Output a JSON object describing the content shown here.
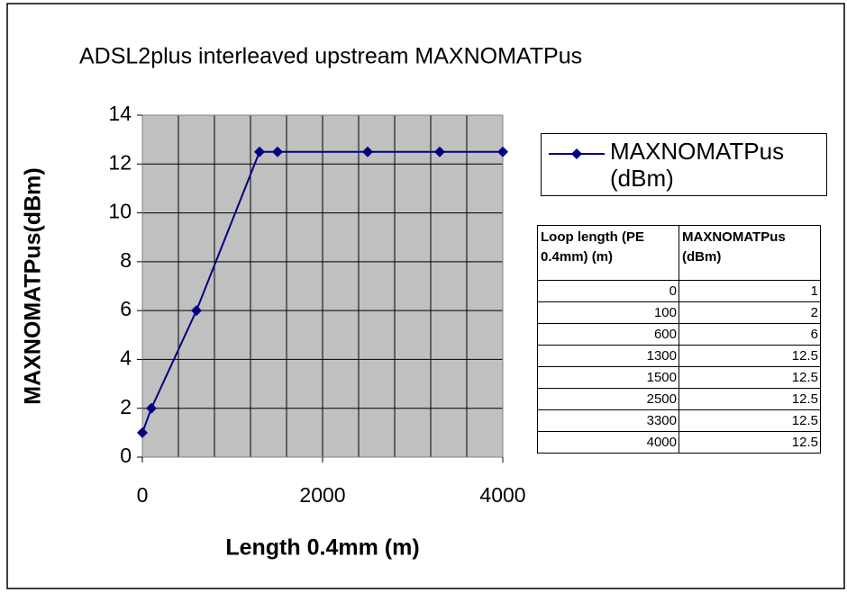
{
  "chart_data": {
    "type": "line",
    "title": "ADSL2plus interleaved upstream MAXNOMATPus",
    "x_label": "Length 0.4mm (m)",
    "y_label": "MAXNOMATPus(dBm)",
    "x": [
      0,
      100,
      600,
      1300,
      1500,
      2500,
      3300,
      4000
    ],
    "series": [
      {
        "name": "MAXNOMATPus (dBm)",
        "color": "#000080",
        "values": [
          1,
          2,
          6,
          12.5,
          12.5,
          12.5,
          12.5,
          12.5
        ]
      }
    ],
    "xlim": [
      0,
      4000
    ],
    "xticks": [
      0,
      2000,
      4000
    ],
    "xgrid": [
      0,
      400,
      800,
      1200,
      1600,
      2000,
      2400,
      2800,
      3200,
      3600,
      4000
    ],
    "ylim": [
      0,
      14
    ],
    "yticks": [
      0,
      2,
      4,
      6,
      8,
      10,
      12,
      14
    ],
    "grid": true,
    "plot_background": "#c0c0c0",
    "legend": "right"
  },
  "table": {
    "header": [
      "Loop length (PE 0.4mm) (m)",
      "MAXNOMATPus (dBm)"
    ],
    "rows": [
      [
        "0",
        "1"
      ],
      [
        "100",
        "2"
      ],
      [
        "600",
        "6"
      ],
      [
        "1300",
        "12.5"
      ],
      [
        "1500",
        "12.5"
      ],
      [
        "2500",
        "12.5"
      ],
      [
        "3300",
        "12.5"
      ],
      [
        "4000",
        "12.5"
      ]
    ]
  }
}
